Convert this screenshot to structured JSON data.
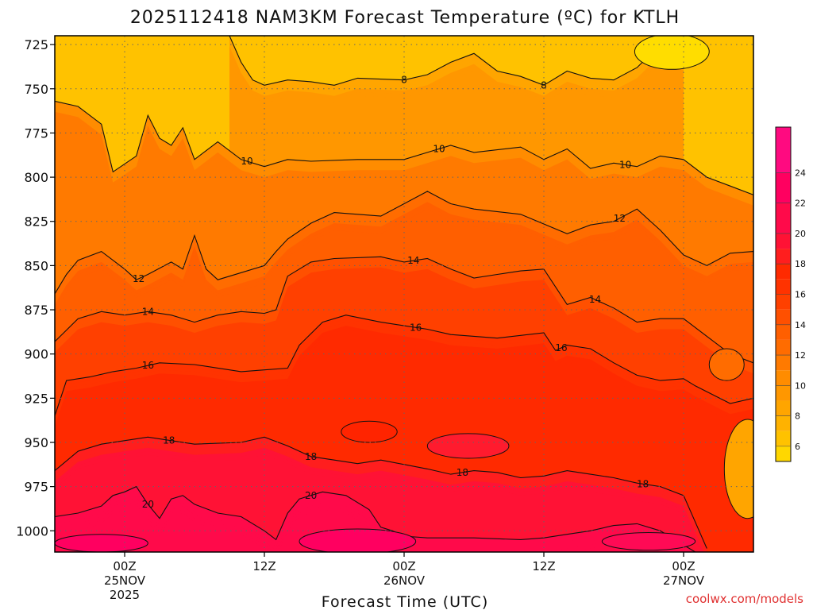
{
  "chart_data": {
    "type": "heatmap",
    "title": "2025112418 NAM3KM Forecast Temperature (ºC) for KTLH",
    "xlabel": "Forecast Time (UTC)",
    "ylabel": "",
    "credit": "coolwx.com/models",
    "y_ticks": [
      {
        "value": 725,
        "label": "725"
      },
      {
        "value": 750,
        "label": "750"
      },
      {
        "value": 775,
        "label": "775"
      },
      {
        "value": 800,
        "label": "800"
      },
      {
        "value": 825,
        "label": "825"
      },
      {
        "value": 850,
        "label": "850"
      },
      {
        "value": 875,
        "label": "875"
      },
      {
        "value": 900,
        "label": "900"
      },
      {
        "value": 925,
        "label": "925"
      },
      {
        "value": 950,
        "label": "950"
      },
      {
        "value": 975,
        "label": "975"
      },
      {
        "value": 1000,
        "label": "1000"
      }
    ],
    "ylim": [
      720,
      1012
    ],
    "xlim": [
      -6,
      54
    ],
    "x_ticks": [
      {
        "hour": 0,
        "lines": [
          "00Z",
          "25NOV",
          "2025"
        ]
      },
      {
        "hour": 12,
        "lines": [
          "12Z"
        ]
      },
      {
        "hour": 24,
        "lines": [
          "00Z",
          "26NOV"
        ]
      },
      {
        "hour": 36,
        "lines": [
          "12Z"
        ]
      },
      {
        "hour": 48,
        "lines": [
          "00Z",
          "27NOV"
        ]
      }
    ],
    "grid": true,
    "colorbar": {
      "min": 5,
      "max": 27,
      "ticks": [
        6,
        8,
        10,
        12,
        14,
        16,
        18,
        20,
        22,
        24
      ],
      "levels": [
        {
          "from": 5,
          "to": 6,
          "color": "#ffd700"
        },
        {
          "from": 6,
          "to": 7,
          "color": "#ffc200"
        },
        {
          "from": 7,
          "to": 8,
          "color": "#ffb200"
        },
        {
          "from": 8,
          "to": 9,
          "color": "#ffa500"
        },
        {
          "from": 9,
          "to": 10,
          "color": "#ff9700"
        },
        {
          "from": 10,
          "to": 11,
          "color": "#ff8c00"
        },
        {
          "from": 11,
          "to": 12,
          "color": "#ff7a00"
        },
        {
          "from": 12,
          "to": 13,
          "color": "#ff6c00"
        },
        {
          "from": 13,
          "to": 14,
          "color": "#ff5f00"
        },
        {
          "from": 14,
          "to": 15,
          "color": "#ff5000"
        },
        {
          "from": 15,
          "to": 16,
          "color": "#ff4000"
        },
        {
          "from": 16,
          "to": 17,
          "color": "#ff3300"
        },
        {
          "from": 17,
          "to": 18,
          "color": "#ff2a00"
        },
        {
          "from": 18,
          "to": 19,
          "color": "#ff1e1e"
        },
        {
          "from": 19,
          "to": 20,
          "color": "#ff1235"
        },
        {
          "from": 20,
          "to": 22,
          "color": "#ff0a4a"
        },
        {
          "from": 22,
          "to": 24,
          "color": "#ff0060"
        },
        {
          "from": 24,
          "to": 27,
          "color": "#ff0a80"
        }
      ]
    },
    "contours": [
      {
        "level": 8,
        "label": "8",
        "label_hours": [
          24,
          36
        ],
        "points": [
          [
            9,
            720
          ],
          [
            10,
            735
          ],
          [
            11,
            745
          ],
          [
            12,
            748
          ],
          [
            14,
            745
          ],
          [
            16,
            746
          ],
          [
            18,
            748
          ],
          [
            20,
            744
          ],
          [
            24,
            745
          ],
          [
            26,
            742
          ],
          [
            28,
            735
          ],
          [
            30,
            730
          ],
          [
            32,
            740
          ],
          [
            34,
            743
          ],
          [
            36,
            748
          ],
          [
            38,
            740
          ],
          [
            40,
            744
          ],
          [
            42,
            745
          ],
          [
            44,
            738
          ],
          [
            46,
            725
          ],
          [
            48,
            720
          ]
        ]
      },
      {
        "level": 10,
        "label": "10",
        "label_hours": [
          10.5,
          27,
          43
        ],
        "points": [
          [
            -6,
            757
          ],
          [
            -4,
            760
          ],
          [
            -2,
            770
          ],
          [
            -1,
            797
          ],
          [
            1,
            788
          ],
          [
            2,
            765
          ],
          [
            3,
            778
          ],
          [
            4,
            782
          ],
          [
            5,
            772
          ],
          [
            6,
            790
          ],
          [
            8,
            780
          ],
          [
            10,
            790
          ],
          [
            12,
            794
          ],
          [
            14,
            790
          ],
          [
            16,
            791
          ],
          [
            20,
            790
          ],
          [
            24,
            790
          ],
          [
            26,
            786
          ],
          [
            28,
            782
          ],
          [
            30,
            786
          ],
          [
            34,
            783
          ],
          [
            36,
            790
          ],
          [
            38,
            784
          ],
          [
            40,
            795
          ],
          [
            42,
            792
          ],
          [
            44,
            794
          ],
          [
            46,
            788
          ],
          [
            48,
            790
          ],
          [
            50,
            800
          ],
          [
            52,
            805
          ],
          [
            54,
            810
          ]
        ]
      },
      {
        "level": 12,
        "label": "12",
        "label_hours": [
          1.2,
          42.5
        ],
        "points": [
          [
            -6,
            866
          ],
          [
            -5,
            855
          ],
          [
            -4,
            847
          ],
          [
            -2,
            842
          ],
          [
            0,
            852
          ],
          [
            1,
            858
          ],
          [
            2,
            855
          ],
          [
            4,
            848
          ],
          [
            5,
            852
          ],
          [
            6,
            833
          ],
          [
            7,
            852
          ],
          [
            8,
            858
          ],
          [
            10,
            854
          ],
          [
            12,
            850
          ],
          [
            13,
            842
          ],
          [
            14,
            835
          ],
          [
            16,
            826
          ],
          [
            18,
            820
          ],
          [
            22,
            822
          ],
          [
            24,
            815
          ],
          [
            26,
            808
          ],
          [
            28,
            815
          ],
          [
            30,
            818
          ],
          [
            34,
            821
          ],
          [
            38,
            832
          ],
          [
            40,
            827
          ],
          [
            42,
            825
          ],
          [
            44,
            818
          ],
          [
            46,
            830
          ],
          [
            48,
            844
          ],
          [
            50,
            850
          ],
          [
            52,
            843
          ],
          [
            54,
            842
          ]
        ]
      },
      {
        "level": 14,
        "label": "14",
        "label_hours": [
          2,
          24.8,
          40.4
        ],
        "points": [
          [
            -6,
            893
          ],
          [
            -4,
            880
          ],
          [
            -2,
            876
          ],
          [
            0,
            878
          ],
          [
            2,
            876
          ],
          [
            4,
            878
          ],
          [
            6,
            882
          ],
          [
            8,
            878
          ],
          [
            10,
            876
          ],
          [
            12,
            877
          ],
          [
            13,
            875
          ],
          [
            14,
            856
          ],
          [
            16,
            848
          ],
          [
            18,
            846
          ],
          [
            22,
            845
          ],
          [
            24,
            848
          ],
          [
            26,
            846
          ],
          [
            28,
            852
          ],
          [
            30,
            857
          ],
          [
            32,
            855
          ],
          [
            34,
            853
          ],
          [
            36,
            852
          ],
          [
            38,
            872
          ],
          [
            40,
            868
          ],
          [
            42,
            874
          ],
          [
            44,
            882
          ],
          [
            46,
            880
          ],
          [
            48,
            880
          ],
          [
            50,
            890
          ],
          [
            52,
            900
          ],
          [
            54,
            905
          ]
        ]
      },
      {
        "level": 16,
        "label": "16",
        "label_hours": [
          2,
          25,
          37.5
        ],
        "points": [
          [
            -6,
            935
          ],
          [
            -5,
            915
          ],
          [
            -3,
            913
          ],
          [
            -1,
            910
          ],
          [
            1,
            908
          ],
          [
            3,
            905
          ],
          [
            6,
            906
          ],
          [
            10,
            910
          ],
          [
            12,
            909
          ],
          [
            14,
            908
          ],
          [
            15,
            895
          ],
          [
            17,
            882
          ],
          [
            19,
            878
          ],
          [
            22,
            882
          ],
          [
            24,
            884
          ],
          [
            26,
            886
          ],
          [
            28,
            889
          ],
          [
            30,
            890
          ],
          [
            32,
            891
          ],
          [
            36,
            888
          ],
          [
            37,
            898
          ],
          [
            38,
            895
          ],
          [
            40,
            897
          ],
          [
            42,
            905
          ],
          [
            44,
            912
          ],
          [
            46,
            915
          ],
          [
            48,
            914
          ],
          [
            49,
            918
          ],
          [
            52,
            928
          ],
          [
            54,
            925
          ]
        ]
      },
      {
        "level": 18,
        "label": "18",
        "label_hours": [
          3.8,
          16,
          29,
          44.5
        ],
        "points": [
          [
            -6,
            966
          ],
          [
            -4,
            955
          ],
          [
            -2,
            951
          ],
          [
            2,
            947
          ],
          [
            6,
            951
          ],
          [
            10,
            950
          ],
          [
            12,
            947
          ],
          [
            14,
            952
          ],
          [
            16,
            958
          ],
          [
            18,
            960
          ],
          [
            20,
            962
          ],
          [
            22,
            960
          ],
          [
            26,
            965
          ],
          [
            28,
            968
          ],
          [
            30,
            966
          ],
          [
            32,
            967
          ],
          [
            34,
            970
          ],
          [
            36,
            969
          ],
          [
            38,
            966
          ],
          [
            40,
            968
          ],
          [
            42,
            970
          ],
          [
            44,
            973
          ],
          [
            46,
            975
          ],
          [
            48,
            980
          ],
          [
            49,
            995
          ],
          [
            50,
            1010
          ]
        ]
      },
      {
        "level": 20,
        "label": "20",
        "label_hours": [
          2,
          16
        ],
        "points": [
          [
            -6,
            992
          ],
          [
            -4,
            990
          ],
          [
            -2,
            986
          ],
          [
            -1,
            980
          ],
          [
            0,
            978
          ],
          [
            1,
            975
          ],
          [
            2,
            985
          ],
          [
            3,
            993
          ],
          [
            4,
            982
          ],
          [
            5,
            980
          ],
          [
            6,
            985
          ],
          [
            8,
            990
          ],
          [
            10,
            992
          ],
          [
            12,
            1000
          ],
          [
            13,
            1005
          ],
          [
            14,
            990
          ],
          [
            15,
            982
          ],
          [
            17,
            978
          ],
          [
            19,
            980
          ],
          [
            21,
            988
          ],
          [
            22,
            998
          ],
          [
            23,
            1000
          ],
          [
            24,
            1003
          ],
          [
            26,
            1004
          ],
          [
            30,
            1004
          ],
          [
            34,
            1005
          ],
          [
            36,
            1004
          ],
          [
            38,
            1002
          ],
          [
            40,
            1000
          ],
          [
            42,
            997
          ],
          [
            44,
            996
          ],
          [
            46,
            1000
          ],
          [
            48,
            1008
          ],
          [
            49,
            1012
          ]
        ]
      }
    ],
    "pockets": [
      {
        "level": 6,
        "center": [
          47,
          729
        ],
        "size": [
          3.2,
          10
        ],
        "color": "#ffdd00"
      },
      {
        "level": 19,
        "center": [
          29.5,
          952
        ],
        "size": [
          3.5,
          7
        ],
        "color": "#ff1b2e"
      },
      {
        "level": 18,
        "center": [
          21,
          944
        ],
        "size": [
          2.4,
          6
        ],
        "color": "#ff2400"
      },
      {
        "level": 22,
        "center": [
          20,
          1006
        ],
        "size": [
          5,
          7
        ],
        "color": "#ff0060"
      },
      {
        "level": 22,
        "center": [
          -2,
          1007
        ],
        "size": [
          4,
          5
        ],
        "color": "#ff0060"
      },
      {
        "level": 22,
        "center": [
          45,
          1006
        ],
        "size": [
          4,
          5
        ],
        "color": "#ff0a55"
      },
      {
        "level": 12,
        "center": [
          51.7,
          906
        ],
        "size": [
          1.5,
          9
        ],
        "color": "#ff6c00"
      },
      {
        "level": 8,
        "center": [
          53.5,
          965
        ],
        "size": [
          2,
          28
        ],
        "color": "#ffa500"
      }
    ],
    "terrain": {
      "top_pressure": 1012,
      "color": "#a0522d"
    }
  }
}
